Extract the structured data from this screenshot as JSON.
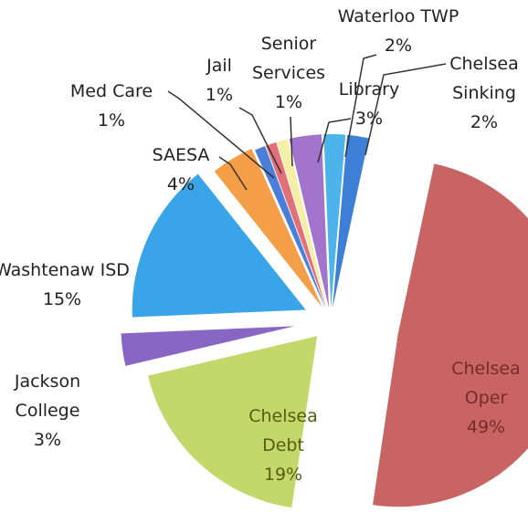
{
  "chart_data": {
    "type": "pie",
    "categories": [
      "Chelsea Oper",
      "Chelsea Debt",
      "Jackson College",
      "Washtenaw ISD",
      "SAESA",
      "Med Care",
      "Jail",
      "Senior Services",
      "Library",
      "Waterloo TWP",
      "Chelsea Sinking"
    ],
    "values": [
      49,
      19,
      3,
      15,
      4,
      1,
      1,
      1,
      3,
      2,
      2
    ],
    "value_labels": [
      "49%",
      "19%",
      "3%",
      "15%",
      "4%",
      "1%",
      "1%",
      "1%",
      "3%",
      "2%",
      "2%"
    ],
    "colors": [
      "#c86464",
      "#c3d86a",
      "#8a66c4",
      "#3aa4e8",
      "#f59e48",
      "#4a7ed8",
      "#e27078",
      "#f4eea6",
      "#a274cc",
      "#4cb4ea",
      "#3d7ed6"
    ]
  }
}
